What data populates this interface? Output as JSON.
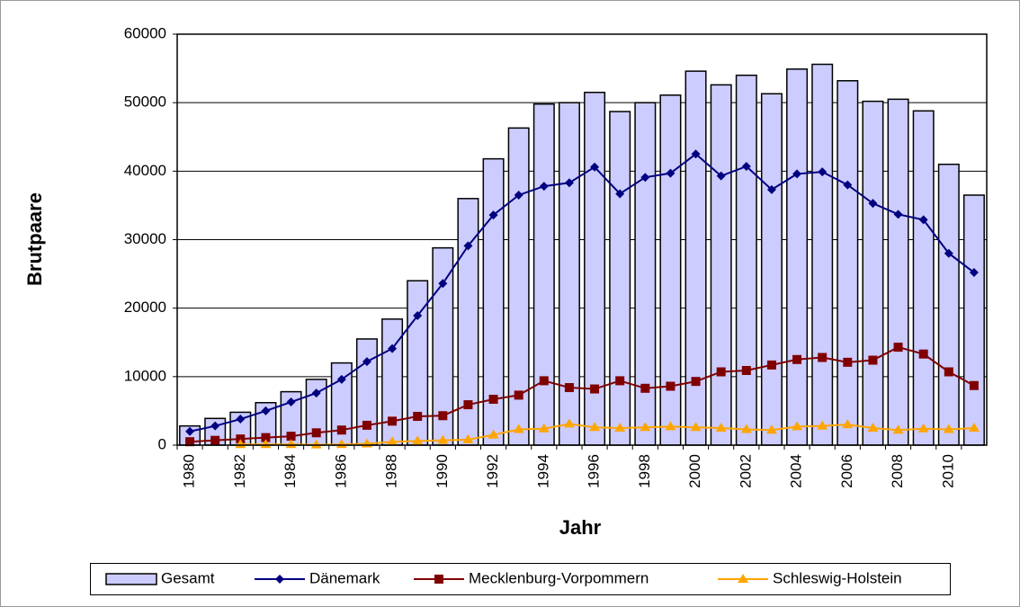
{
  "chart_data": {
    "type": "bar",
    "x_label": "Jahr",
    "y_label": "Brutpaare",
    "categories": [
      1980,
      null,
      1982,
      null,
      1984,
      null,
      1986,
      null,
      1988,
      null,
      1990,
      null,
      1992,
      null,
      1994,
      null,
      1996,
      null,
      1998,
      null,
      2000,
      null,
      2002,
      null,
      2004,
      null,
      2006,
      null,
      2008,
      null,
      2010,
      null
    ],
    "series": [
      {
        "name": "Gesamt",
        "type": "bar",
        "color": "#ccccff",
        "values": [
          2800,
          3900,
          4800,
          6200,
          7800,
          9600,
          12000,
          15500,
          18400,
          24000,
          28800,
          36000,
          41800,
          46300,
          49800,
          50000,
          51500,
          48700,
          50000,
          51100,
          54600,
          52600,
          54000,
          51300,
          54900,
          55600,
          53200,
          50200,
          50500,
          48800,
          41000,
          36500
        ]
      },
      {
        "name": "Dänemark",
        "type": "line",
        "marker": "diamond",
        "color": "#000080",
        "values": [
          2000,
          2800,
          3800,
          5000,
          6300,
          7600,
          9600,
          12200,
          14100,
          18900,
          23600,
          29100,
          33600,
          36500,
          37800,
          38300,
          40600,
          36700,
          39100,
          39700,
          42500,
          39300,
          40700,
          37300,
          39600,
          39900,
          38000,
          35300,
          33700,
          32900,
          28000,
          25200
        ]
      },
      {
        "name": "Mecklenburg-Vorpommern",
        "type": "line",
        "marker": "square",
        "color": "#800000",
        "values": [
          500,
          700,
          900,
          1100,
          1300,
          1800,
          2200,
          2900,
          3500,
          4200,
          4300,
          5900,
          6700,
          7300,
          9400,
          8400,
          8200,
          9400,
          8300,
          8600,
          9300,
          10700,
          10900,
          11700,
          12500,
          12800,
          12100,
          12400,
          14300,
          13300,
          10700,
          8700
        ]
      },
      {
        "name": "Schleswig-Holstein",
        "type": "line",
        "marker": "triangle",
        "color": "#ffa500",
        "values": [
          null,
          null,
          100,
          100,
          100,
          50,
          100,
          200,
          500,
          600,
          700,
          800,
          1500,
          2300,
          2400,
          3100,
          2600,
          2500,
          2600,
          2700,
          2600,
          2500,
          2300,
          2200,
          2700,
          2800,
          3000,
          2500,
          2200,
          2400,
          2300,
          2500
        ]
      }
    ],
    "ylim": [
      0,
      60000
    ],
    "yticks": [
      0,
      10000,
      20000,
      30000,
      40000,
      50000,
      60000
    ],
    "grid": true,
    "legend": "bottom"
  }
}
